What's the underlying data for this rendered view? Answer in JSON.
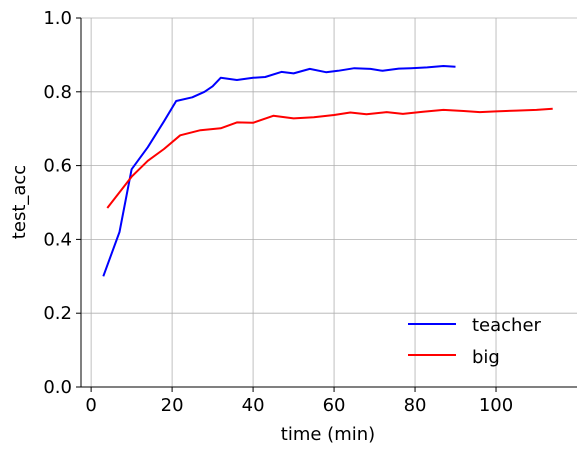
{
  "chart_data": {
    "type": "line",
    "xlabel": "time (min)",
    "ylabel": "test_acc",
    "xlim": [
      -2.5,
      120
    ],
    "ylim": [
      0.0,
      1.0
    ],
    "xticks": [
      0,
      20,
      40,
      60,
      80,
      100
    ],
    "yticks": [
      0.0,
      0.2,
      0.4,
      0.6,
      0.8,
      1.0
    ],
    "xtick_labels": [
      "0",
      "20",
      "40",
      "60",
      "80",
      "100"
    ],
    "ytick_labels": [
      "0.0",
      "0.2",
      "0.4",
      "0.6",
      "0.8",
      "1.0"
    ],
    "grid": true,
    "legend_position": "lower-right",
    "series": [
      {
        "name": "teacher",
        "color": "#0000ff",
        "x": [
          3,
          7,
          10,
          14,
          18,
          21,
          25,
          28,
          30,
          32,
          36,
          40,
          43,
          47,
          50,
          54,
          58,
          61,
          65,
          69,
          72,
          76,
          79,
          83,
          87,
          90
        ],
        "y": [
          0.3,
          0.42,
          0.59,
          0.65,
          0.72,
          0.775,
          0.785,
          0.8,
          0.815,
          0.838,
          0.832,
          0.838,
          0.84,
          0.854,
          0.85,
          0.862,
          0.853,
          0.857,
          0.864,
          0.862,
          0.857,
          0.863,
          0.864,
          0.866,
          0.87,
          0.868
        ]
      },
      {
        "name": "big",
        "color": "#ff0000",
        "x": [
          4,
          10,
          14,
          18,
          22,
          27,
          32,
          36,
          40,
          45,
          50,
          55,
          60,
          64,
          68,
          73,
          77,
          82,
          87,
          92,
          96,
          100,
          105,
          110,
          114
        ],
        "y": [
          0.485,
          0.57,
          0.613,
          0.645,
          0.682,
          0.696,
          0.701,
          0.717,
          0.716,
          0.735,
          0.728,
          0.731,
          0.737,
          0.744,
          0.739,
          0.745,
          0.74,
          0.746,
          0.751,
          0.748,
          0.745,
          0.747,
          0.749,
          0.751,
          0.754
        ]
      }
    ]
  }
}
